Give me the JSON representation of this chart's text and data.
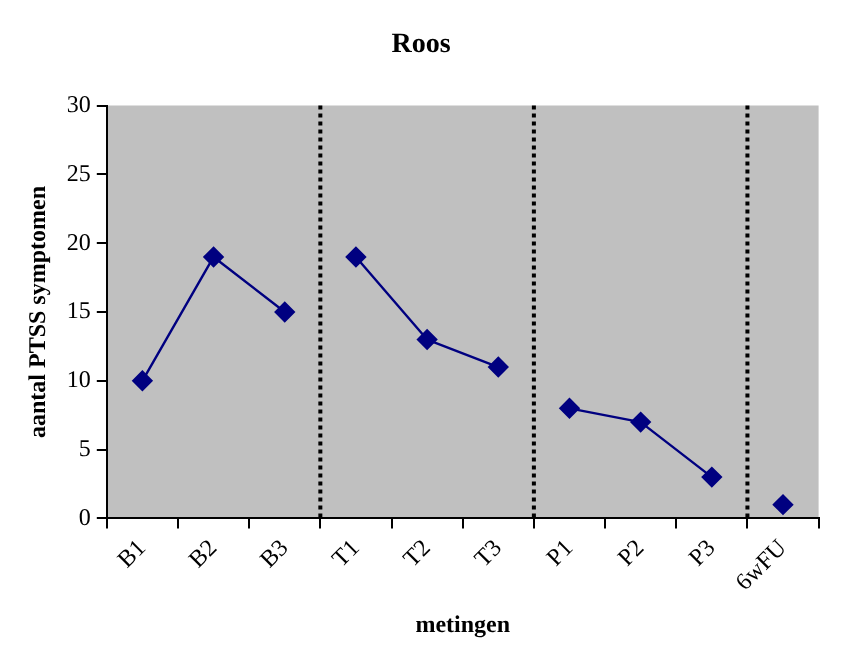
{
  "chart_data": {
    "type": "line",
    "title": "Roos",
    "xlabel": "metingen",
    "ylabel": "aantal PTSS symptomen",
    "categories": [
      "B1",
      "B2",
      "B3",
      "T1",
      "T2",
      "T3",
      "P1",
      "P2",
      "P3",
      "6wFU"
    ],
    "series": [
      {
        "color": "#000080",
        "values": [
          10,
          19,
          15,
          null,
          null,
          null,
          null,
          null,
          null,
          null
        ]
      },
      {
        "color": "#000080",
        "values": [
          null,
          null,
          null,
          19,
          13,
          11,
          null,
          null,
          null,
          null
        ]
      },
      {
        "color": "#000080",
        "values": [
          null,
          null,
          null,
          null,
          null,
          null,
          8,
          7,
          3,
          null
        ]
      },
      {
        "color": "#000080",
        "values": [
          null,
          null,
          null,
          null,
          null,
          null,
          null,
          null,
          null,
          1
        ]
      }
    ],
    "ylim": [
      0,
      30
    ],
    "yticks": [
      0,
      5,
      10,
      15,
      20,
      25,
      30
    ],
    "grid": false,
    "legend": false,
    "marker": "diamond",
    "line_style": "solid"
  }
}
